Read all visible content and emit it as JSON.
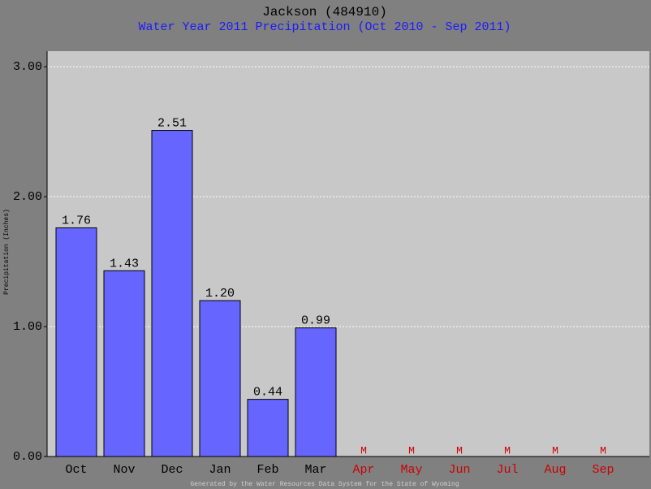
{
  "chart_data": {
    "type": "bar",
    "title": "Jackson (484910)",
    "subtitle": "Water Year 2011 Precipitation (Oct 2010 - Sep 2011)",
    "y_label": "Precipitation (Inches)",
    "footer": "Generated by the Water Resources Data System for the State of Wyoming",
    "categories": [
      "Oct",
      "Nov",
      "Dec",
      "Jan",
      "Feb",
      "Mar",
      "Apr",
      "May",
      "Jun",
      "Jul",
      "Aug",
      "Sep"
    ],
    "values": [
      1.76,
      1.43,
      2.51,
      1.2,
      0.44,
      0.99,
      null,
      null,
      null,
      null,
      null,
      null
    ],
    "value_labels": [
      "1.76",
      "1.43",
      "2.51",
      "1.20",
      "0.44",
      "0.99",
      "M",
      "M",
      "M",
      "M",
      "M",
      "M"
    ],
    "color": "#6666ff",
    "missing_color": "#cc0000",
    "ylim": [
      0,
      3.12
    ],
    "yticks": [
      {
        "value": 0,
        "label": "0.00"
      },
      {
        "value": 1,
        "label": "1.00"
      },
      {
        "value": 2,
        "label": "2.00"
      },
      {
        "value": 3,
        "label": "3.00"
      }
    ],
    "grid": true
  }
}
